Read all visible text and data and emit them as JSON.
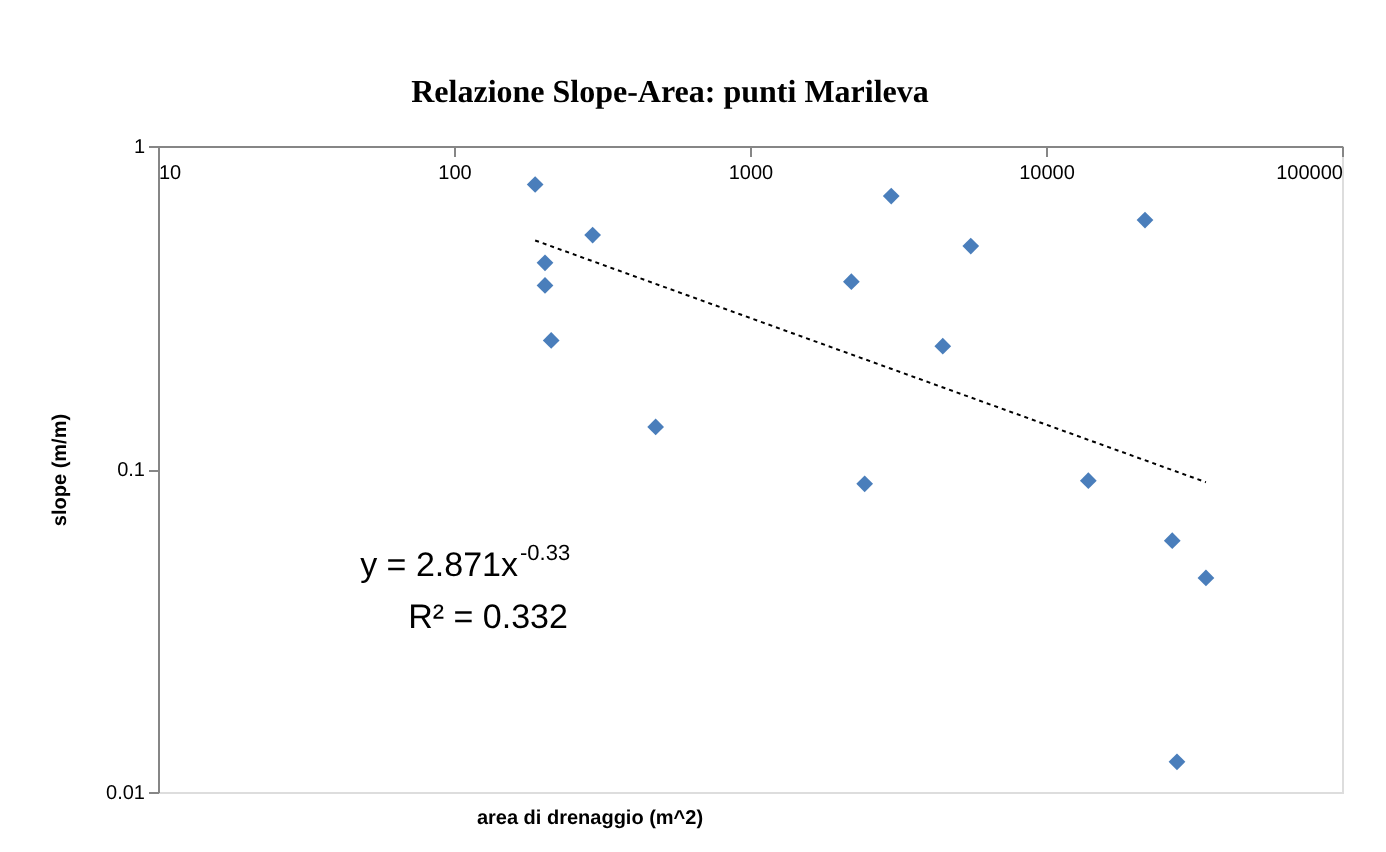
{
  "chart_data": {
    "type": "scatter",
    "title": "Relazione Slope-Area: punti Marileva",
    "xlabel": "area di drenaggio (m^2)",
    "ylabel": "slope (m/m)",
    "log": "xy",
    "xlim": [
      10,
      100000
    ],
    "xticks": [
      10,
      100,
      1000,
      10000,
      100000
    ],
    "ylim": [
      0.01,
      1
    ],
    "yticks": [
      0.01,
      0.1,
      1
    ],
    "grid": false,
    "marker": "diamond",
    "series": [
      {
        "color": "#4a7ebb",
        "x": [
          188,
          203,
          203,
          213,
          294,
          480,
          2200,
          2440,
          3000,
          4480,
          5570,
          13900,
          21600,
          26700,
          34700,
          27700
        ],
        "values": [
          0.76,
          0.435,
          0.37,
          0.25,
          0.53,
          0.135,
          0.38,
          0.09,
          0.7,
          0.24,
          0.49,
          0.092,
          0.59,
          0.06,
          0.046,
          0.0124
        ]
      },
      {
        "type": "line",
        "color": "#000000",
        "line_style": "dotted",
        "marker": "none",
        "x": [
          188,
          34700
        ],
        "values": [
          0.51,
          0.091
        ]
      }
    ],
    "annotations": [
      "y = 2.871x$^{-0.33}$",
      "R² = 0.332"
    ]
  }
}
